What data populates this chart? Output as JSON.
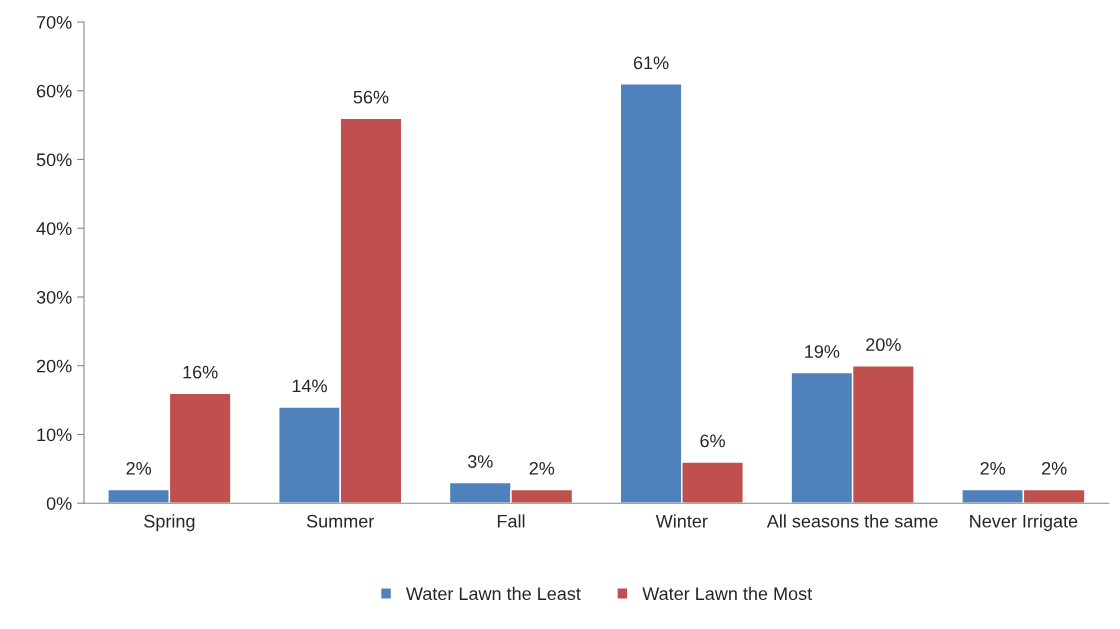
{
  "chart_data": {
    "type": "bar",
    "categories": [
      "Spring",
      "Summer",
      "Fall",
      "Winter",
      "All seasons the same",
      "Never Irrigate"
    ],
    "series": [
      {
        "name": "Water Lawn the Least",
        "color": "#4f81bd",
        "values": [
          2,
          14,
          3,
          61,
          19,
          2
        ],
        "value_labels": [
          "2%",
          "14%",
          "3%",
          "61%",
          "19%",
          "2%"
        ]
      },
      {
        "name": "Water Lawn the Most",
        "color": "#c0504d",
        "values": [
          16,
          56,
          2,
          6,
          20,
          2
        ],
        "value_labels": [
          "16%",
          "56%",
          "2%",
          "6%",
          "20%",
          "2%"
        ]
      }
    ],
    "ylim": [
      0,
      70
    ],
    "yticks": [
      {
        "value": 0,
        "label": "0%"
      },
      {
        "value": 10,
        "label": "10%"
      },
      {
        "value": 20,
        "label": "20%"
      },
      {
        "value": 30,
        "label": "30%"
      },
      {
        "value": 40,
        "label": "40%"
      },
      {
        "value": 50,
        "label": "50%"
      },
      {
        "value": 60,
        "label": "60%"
      },
      {
        "value": 70,
        "label": "70%"
      }
    ],
    "grid": false,
    "legend": "bottom"
  }
}
